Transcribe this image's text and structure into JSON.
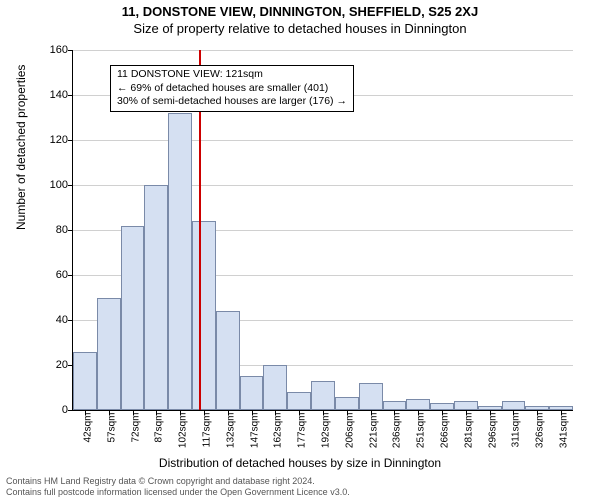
{
  "title_main": "11, DONSTONE VIEW, DINNINGTON, SHEFFIELD, S25 2XJ",
  "title_sub": "Size of property relative to detached houses in Dinnington",
  "ylabel": "Number of detached properties",
  "xlabel": "Distribution of detached houses by size in Dinnington",
  "chart": {
    "type": "histogram",
    "ylim": [
      0,
      160
    ],
    "ytick_step": 20,
    "yticks": [
      0,
      20,
      40,
      60,
      80,
      100,
      120,
      140,
      160
    ],
    "categories": [
      "42sqm",
      "57sqm",
      "72sqm",
      "87sqm",
      "102sqm",
      "117sqm",
      "132sqm",
      "147sqm",
      "162sqm",
      "177sqm",
      "192sqm",
      "206sqm",
      "221sqm",
      "236sqm",
      "251sqm",
      "266sqm",
      "281sqm",
      "296sqm",
      "311sqm",
      "326sqm",
      "341sqm"
    ],
    "values": [
      26,
      50,
      82,
      100,
      132,
      84,
      44,
      15,
      20,
      8,
      13,
      6,
      12,
      4,
      5,
      3,
      4,
      2,
      4,
      2,
      2
    ],
    "bar_color": "#d5e0f2",
    "bar_border_color": "#7a8aa8",
    "grid_color": "#d0d0d0",
    "background_color": "#ffffff",
    "ref_line_color": "#cc0000",
    "ref_line_after_index": 5,
    "title_fontsize": 13,
    "label_fontsize": 12,
    "tick_fontsize": 11
  },
  "annotation": {
    "line1": "11 DONSTONE VIEW: 121sqm",
    "line2": "← 69% of detached houses are smaller (401)",
    "line3": "30% of semi-detached houses are larger (176) →"
  },
  "footer": {
    "line1": "Contains HM Land Registry data © Crown copyright and database right 2024.",
    "line2": "Contains full postcode information licensed under the Open Government Licence v3.0."
  }
}
